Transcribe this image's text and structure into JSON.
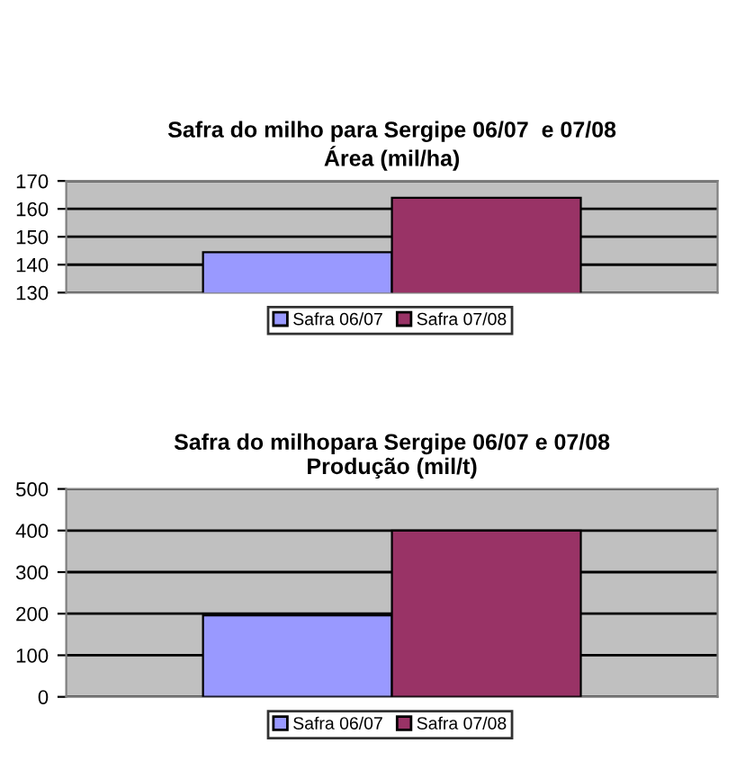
{
  "chart_data": [
    {
      "type": "bar",
      "title": "Safra do milho para Sergipe 06/07  e 07/08\nÁrea (mil/ha)",
      "categories": [
        null
      ],
      "ylim": [
        130,
        170
      ],
      "yticks": [
        130,
        140,
        150,
        160,
        170
      ],
      "grid": "y",
      "legend": "bottom",
      "tick_labels": "y",
      "series": [
        {
          "name": "Safra 06/07",
          "color": "#9999ff",
          "values": [
            144.5
          ]
        },
        {
          "name": "Safra 07/08",
          "color": "#993366",
          "values": [
            164
          ]
        }
      ]
    },
    {
      "type": "bar",
      "title": "Safra do milhopara Sergipe 06/07 e 07/08\nProdução (mil/t)",
      "categories": [
        null
      ],
      "ylim": [
        0,
        500
      ],
      "yticks": [
        0,
        100,
        200,
        300,
        400,
        500
      ],
      "grid": "y",
      "legend": "bottom",
      "tick_labels": "y",
      "series": [
        {
          "name": "Safra 06/07",
          "color": "#9999ff",
          "values": [
            196
          ]
        },
        {
          "name": "Safra 07/08",
          "color": "#993366",
          "values": [
            400
          ]
        }
      ]
    }
  ]
}
